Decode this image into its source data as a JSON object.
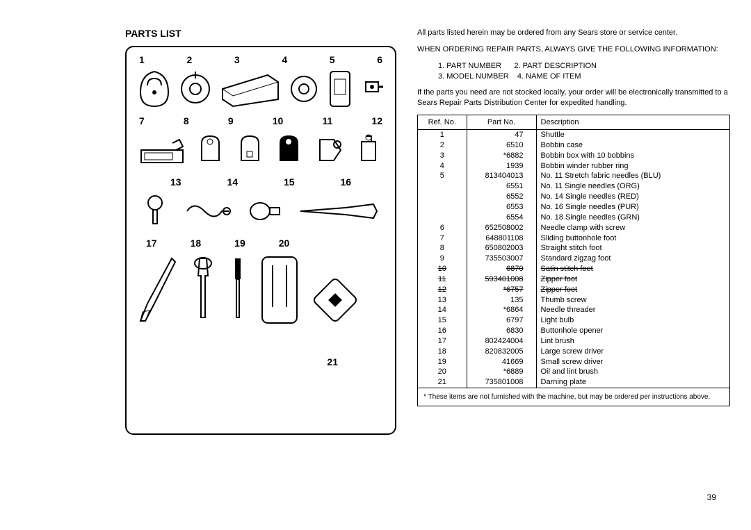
{
  "title": "PARTS LIST",
  "intro": "All parts listed herein may be ordered from any Sears store or service center.",
  "orderHeading": "WHEN ORDERING REPAIR PARTS, ALWAYS GIVE THE FOLLOWING INFORMATION:",
  "orderItems": {
    "i1": "1. PART NUMBER",
    "i2": "2. PART DESCRIPTION",
    "i3": "3. MODEL NUMBER",
    "i4": "4. NAME OF ITEM"
  },
  "stockNote": "If the parts you need are not stocked locally, your order will be electronically transmitted to a Sears Repair Parts Distribution Center for expedited handling.",
  "table": {
    "headers": {
      "h1": "Ref. No.",
      "h2": "Part No.",
      "h3": "Description"
    },
    "rows": [
      {
        "ref": "1",
        "part": "47",
        "desc": "Shuttle"
      },
      {
        "ref": "2",
        "part": "6510",
        "desc": "Bobbin case"
      },
      {
        "ref": "3",
        "part": "*6882",
        "desc": "Bobbin box with 10 bobbins"
      },
      {
        "ref": "4",
        "part": "1939",
        "desc": "Bobbin winder rubber ring"
      },
      {
        "ref": "5",
        "part": "813404013",
        "desc": "No. 11 Stretch fabric needles (BLU)"
      },
      {
        "ref": "",
        "part": "6551",
        "desc": "No. 11 Single needles (ORG)"
      },
      {
        "ref": "",
        "part": "6552",
        "desc": "No. 14 Single needles (RED)"
      },
      {
        "ref": "",
        "part": "6553",
        "desc": "No. 16 Single needles (PUR)"
      },
      {
        "ref": "",
        "part": "6554",
        "desc": "No. 18 Single needles (GRN)"
      },
      {
        "ref": "6",
        "part": "652508002",
        "desc": "Needle clamp with screw"
      },
      {
        "ref": "7",
        "part": "648801108",
        "desc": "Sliding buttonhole foot"
      },
      {
        "ref": "8",
        "part": "650802003",
        "desc": "Straight stitch foot"
      },
      {
        "ref": "9",
        "part": "735503007",
        "desc": "Standard zigzag foot"
      },
      {
        "ref": "10",
        "part": "6870",
        "desc": "Satin stitch foot",
        "strike": true
      },
      {
        "ref": "11",
        "part": "593401008",
        "desc": "Zipper foot",
        "strike": true
      },
      {
        "ref": "12",
        "part": "*6757",
        "desc": "Zipper foot",
        "strike": true
      },
      {
        "ref": "13",
        "part": "135",
        "desc": "Thumb screw"
      },
      {
        "ref": "14",
        "part": "*6864",
        "desc": "Needle threader"
      },
      {
        "ref": "15",
        "part": "6797",
        "desc": "Light bulb"
      },
      {
        "ref": "16",
        "part": "6830",
        "desc": "Buttonhole opener"
      },
      {
        "ref": "17",
        "part": "802424004",
        "desc": "Lint brush"
      },
      {
        "ref": "18",
        "part": "820832005",
        "desc": "Large screw driver"
      },
      {
        "ref": "19",
        "part": "41669",
        "desc": "Small screw driver"
      },
      {
        "ref": "20",
        "part": "*6889",
        "desc": "Oil and lint brush"
      },
      {
        "ref": "21",
        "part": "735801008",
        "desc": "Darning plate"
      }
    ]
  },
  "footnote": "* These items are not furnished with the machine, but may be ordered per instructions above.",
  "pageNumber": "39",
  "diagram": {
    "row1": [
      "1",
      "2",
      "3",
      "4",
      "5",
      "6"
    ],
    "row2": [
      "7",
      "8",
      "9",
      "10",
      "11",
      "12"
    ],
    "row3": [
      "13",
      "14",
      "15",
      "16"
    ],
    "row4": [
      "17",
      "18",
      "19",
      "20"
    ],
    "n21": "21"
  }
}
